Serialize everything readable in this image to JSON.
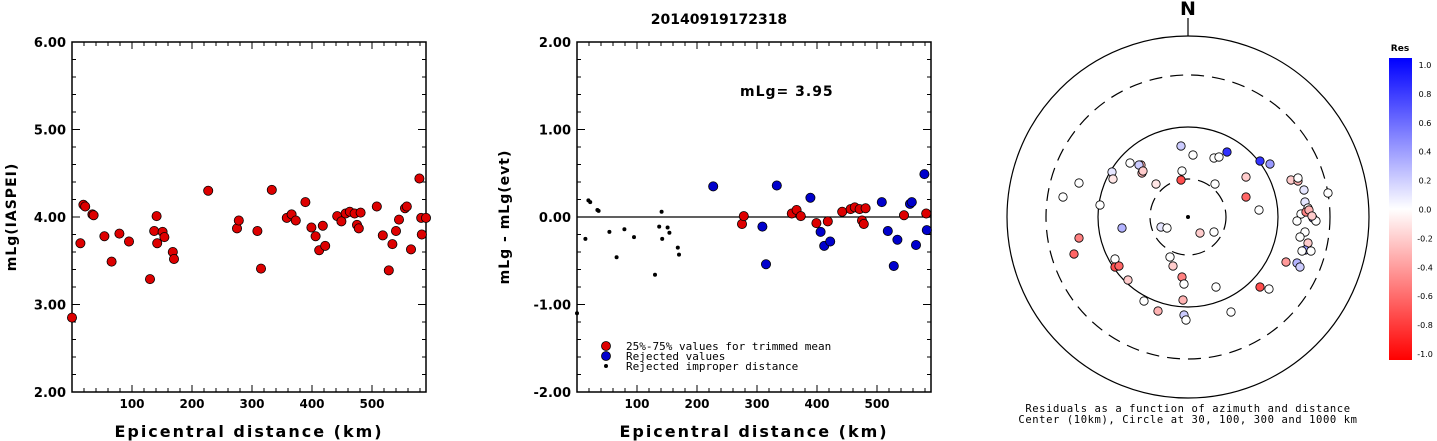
{
  "page_title": "20140919172318",
  "chart_data": [
    {
      "id": "left",
      "type": "scatter",
      "ylabel": "mLg(IASPEI)",
      "xlabel": "Epicentral distance (km)",
      "xlim": [
        0,
        590
      ],
      "ylim": [
        2.0,
        6.0
      ],
      "xticks": [
        "100",
        "200",
        "300",
        "400",
        "500"
      ],
      "yticks": [
        "2.00",
        "3.00",
        "4.00",
        "5.00",
        "6.00"
      ],
      "series": [
        {
          "color": "#dd0000",
          "points": [
            [
              0,
              2.85
            ],
            [
              14,
              3.7
            ],
            [
              19,
              4.14
            ],
            [
              22,
              4.12
            ],
            [
              34,
              4.03
            ],
            [
              36,
              4.02
            ],
            [
              54,
              3.78
            ],
            [
              66,
              3.49
            ],
            [
              79,
              3.81
            ],
            [
              95,
              3.72
            ],
            [
              130,
              3.29
            ],
            [
              137,
              3.84
            ],
            [
              141,
              4.01
            ],
            [
              142,
              3.7
            ],
            [
              151,
              3.83
            ],
            [
              154,
              3.77
            ],
            [
              168,
              3.6
            ],
            [
              170,
              3.52
            ],
            [
              227,
              4.3
            ],
            [
              275,
              3.87
            ],
            [
              278,
              3.96
            ],
            [
              309,
              3.84
            ],
            [
              315,
              3.41
            ],
            [
              333,
              4.31
            ],
            [
              358,
              3.99
            ],
            [
              366,
              4.03
            ],
            [
              373,
              3.96
            ],
            [
              389,
              4.17
            ],
            [
              399,
              3.88
            ],
            [
              406,
              3.78
            ],
            [
              412,
              3.62
            ],
            [
              418,
              3.9
            ],
            [
              422,
              3.67
            ],
            [
              442,
              4.01
            ],
            [
              449,
              3.95
            ],
            [
              456,
              4.04
            ],
            [
              463,
              4.06
            ],
            [
              471,
              4.04
            ],
            [
              475,
              3.91
            ],
            [
              478,
              3.87
            ],
            [
              481,
              4.05
            ],
            [
              508,
              4.12
            ],
            [
              518,
              3.79
            ],
            [
              528,
              3.39
            ],
            [
              534,
              3.69
            ],
            [
              540,
              3.84
            ],
            [
              545,
              3.97
            ],
            [
              555,
              4.1
            ],
            [
              558,
              4.12
            ],
            [
              565,
              3.63
            ],
            [
              579,
              4.44
            ],
            [
              582,
              3.99
            ],
            [
              583,
              3.8
            ],
            [
              590,
              3.99
            ]
          ]
        }
      ]
    },
    {
      "id": "middle",
      "type": "scatter",
      "ylabel": "mLg - mLg(evt)",
      "xlabel": "Epicentral distance (km)",
      "annotation": "mLg= 3.95",
      "xlim": [
        0,
        590
      ],
      "ylim": [
        -2.0,
        2.0
      ],
      "xticks": [
        "100",
        "200",
        "300",
        "400",
        "500"
      ],
      "yticks": [
        "-2.00",
        "-1.00",
        "0.00",
        "1.00",
        "2.00"
      ],
      "legend": [
        {
          "label": "25%-75% values for trimmed mean",
          "color": "#dd0000"
        },
        {
          "label": "Rejected values",
          "color": "#0000cc"
        },
        {
          "label": "Rejected improper distance",
          "color": "#000000"
        }
      ],
      "series": [
        {
          "name": "25%-75% values for trimmed mean",
          "color": "#dd0000",
          "points": [
            [
              275,
              -0.08
            ],
            [
              278,
              0.01
            ],
            [
              358,
              0.04
            ],
            [
              366,
              0.08
            ],
            [
              373,
              0.01
            ],
            [
              399,
              -0.07
            ],
            [
              418,
              -0.05
            ],
            [
              442,
              0.06
            ],
            [
              456,
              0.09
            ],
            [
              463,
              0.11
            ],
            [
              471,
              0.09
            ],
            [
              475,
              -0.04
            ],
            [
              478,
              -0.08
            ],
            [
              481,
              0.1
            ],
            [
              545,
              0.02
            ],
            [
              582,
              0.04
            ]
          ]
        },
        {
          "name": "Rejected values",
          "color": "#0000cc",
          "points": [
            [
              227,
              0.35
            ],
            [
              309,
              -0.11
            ],
            [
              315,
              -0.54
            ],
            [
              333,
              0.36
            ],
            [
              389,
              0.22
            ],
            [
              406,
              -0.17
            ],
            [
              412,
              -0.33
            ],
            [
              422,
              -0.28
            ],
            [
              508,
              0.17
            ],
            [
              518,
              -0.16
            ],
            [
              528,
              -0.56
            ],
            [
              534,
              -0.26
            ],
            [
              555,
              0.15
            ],
            [
              558,
              0.17
            ],
            [
              565,
              -0.32
            ],
            [
              579,
              0.49
            ],
            [
              583,
              -0.15
            ]
          ]
        },
        {
          "name": "Rejected improper distance",
          "color": "#000000",
          "points": [
            [
              0,
              -1.1
            ],
            [
              14,
              -0.25
            ],
            [
              19,
              0.19
            ],
            [
              22,
              0.17
            ],
            [
              34,
              0.08
            ],
            [
              36,
              0.07
            ],
            [
              54,
              -0.17
            ],
            [
              66,
              -0.46
            ],
            [
              79,
              -0.14
            ],
            [
              95,
              -0.23
            ],
            [
              130,
              -0.66
            ],
            [
              137,
              -0.11
            ],
            [
              141,
              0.06
            ],
            [
              142,
              -0.25
            ],
            [
              151,
              -0.12
            ],
            [
              154,
              -0.18
            ],
            [
              168,
              -0.35
            ],
            [
              170,
              -0.43
            ]
          ]
        }
      ]
    },
    {
      "id": "polar",
      "type": "scatter",
      "north_label": "N",
      "caption_line1": "Residuals as a function of azimuth and distance",
      "caption_line2": "Center (10km), Circle at 30, 100, 300 and 1000 km",
      "rings_km": [
        30,
        100,
        300,
        1000
      ],
      "colorbar": {
        "title": "Res",
        "ticks": [
          "1.0",
          "0.8",
          "0.6",
          "0.4",
          "0.2",
          "0.0",
          "-0.2",
          "-0.4",
          "-0.6",
          "-0.8",
          "-1.0"
        ],
        "max_color": "#0000ff",
        "zero_color": "#ffffff",
        "min_color": "#ff0000"
      },
      "points": [
        [
          -7,
          -71,
          0.2
        ],
        [
          39,
          -65,
          0.8
        ],
        [
          5,
          -62,
          0.0
        ],
        [
          26,
          -59,
          0.0
        ],
        [
          31,
          -60,
          0.0
        ],
        [
          -58,
          -54,
          0.0
        ],
        [
          -47,
          -52,
          -0.3
        ],
        [
          -49,
          -52,
          0.2
        ],
        [
          -76,
          -45,
          0.1
        ],
        [
          -7,
          -37,
          -0.7
        ],
        [
          72,
          -56,
          0.8
        ],
        [
          82,
          -53,
          0.4
        ],
        [
          58,
          -40,
          -0.2
        ],
        [
          -109,
          -34,
          0.0
        ],
        [
          -46,
          -44,
          -0.3
        ],
        [
          -45,
          -46,
          -0.2
        ],
        [
          -6,
          -46,
          0.0
        ],
        [
          -75,
          -38,
          -0.1
        ],
        [
          103,
          -37,
          -0.2
        ],
        [
          110,
          -36,
          -0.3
        ],
        [
          116,
          -27,
          0.1
        ],
        [
          117,
          -15,
          0.1
        ],
        [
          120,
          -9,
          0.0
        ],
        [
          -32,
          -33,
          -0.1
        ],
        [
          27,
          -33,
          0.0
        ],
        [
          -125,
          -20,
          0.0
        ],
        [
          110,
          -39,
          0.0
        ],
        [
          58,
          -20,
          -0.6
        ],
        [
          71,
          -7,
          0.0
        ],
        [
          -88,
          -12,
          0.0
        ],
        [
          113,
          -3,
          0.0
        ],
        [
          118,
          -5,
          -0.5
        ],
        [
          121,
          -7,
          -0.3
        ],
        [
          125,
          1,
          0.4
        ],
        [
          128,
          4,
          0.0
        ],
        [
          140,
          -24,
          0.0
        ],
        [
          124,
          -1,
          -0.2
        ],
        [
          109,
          4,
          0.0
        ],
        [
          -66,
          11,
          0.3
        ],
        [
          -27,
          10,
          0.1
        ],
        [
          12,
          16,
          -0.2
        ],
        [
          -21,
          11,
          0.0
        ],
        [
          26,
          15,
          0.0
        ],
        [
          117,
          15,
          0.0
        ],
        [
          112,
          20,
          0.0
        ],
        [
          120,
          26,
          -0.2
        ],
        [
          117,
          33,
          0.4
        ],
        [
          114,
          34,
          0.0
        ],
        [
          123,
          34,
          0.0
        ],
        [
          -109,
          21,
          -0.5
        ],
        [
          -114,
          37,
          -0.6
        ],
        [
          -73,
          42,
          0.0
        ],
        [
          -18,
          40,
          0.0
        ],
        [
          98,
          45,
          -0.4
        ],
        [
          109,
          46,
          0.3
        ],
        [
          112,
          50,
          0.2
        ],
        [
          -73,
          50,
          -0.7
        ],
        [
          -69,
          49,
          -0.6
        ],
        [
          -15,
          49,
          -0.2
        ],
        [
          -60,
          63,
          -0.2
        ],
        [
          -6,
          60,
          -0.5
        ],
        [
          -4,
          67,
          0.0
        ],
        [
          28,
          70,
          0.0
        ],
        [
          72,
          70,
          -0.7
        ],
        [
          81,
          72,
          0.0
        ],
        [
          -44,
          84,
          0.0
        ],
        [
          -5,
          83,
          -0.3
        ],
        [
          -30,
          94,
          -0.3
        ],
        [
          -4,
          98,
          0.2
        ],
        [
          -2,
          103,
          0.0
        ],
        [
          43,
          95,
          0.0
        ]
      ]
    }
  ]
}
